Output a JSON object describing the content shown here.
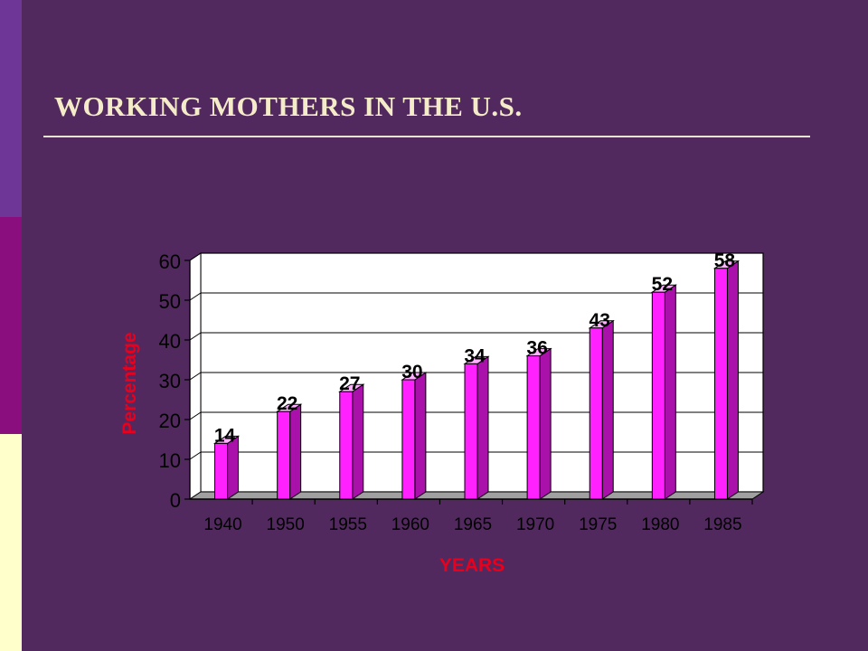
{
  "slide": {
    "title": "WORKING MOTHERS IN THE U.S.",
    "colors": {
      "background": "#52295e",
      "sidebar_top": "#6e3696",
      "sidebar_middle": "#8a0e7e",
      "sidebar_bottom": "#ffffcc",
      "title": "#f4ebc8"
    }
  },
  "chart_data": {
    "type": "bar",
    "style": "3d",
    "categories": [
      "1940",
      "1950",
      "1955",
      "1960",
      "1965",
      "1970",
      "1975",
      "1980",
      "1985"
    ],
    "values": [
      14,
      22,
      27,
      30,
      34,
      36,
      43,
      52,
      58
    ],
    "data_labels": [
      "14",
      "22",
      "27",
      "30",
      "34",
      "36",
      "43",
      "52",
      "58"
    ],
    "title": "",
    "xlabel": "YEARS",
    "ylabel": "Percentage",
    "ylim": [
      0,
      60
    ],
    "yticks": [
      "0",
      "10",
      "20",
      "30",
      "40",
      "50",
      "60"
    ],
    "grid": true,
    "legend": false,
    "colors": {
      "bar_front": "#ff22ff",
      "bar_side": "#aa10aa",
      "bar_top": "#ffb0ff",
      "axis_label": "#e8001c",
      "plot_background": "#ffffff"
    }
  }
}
